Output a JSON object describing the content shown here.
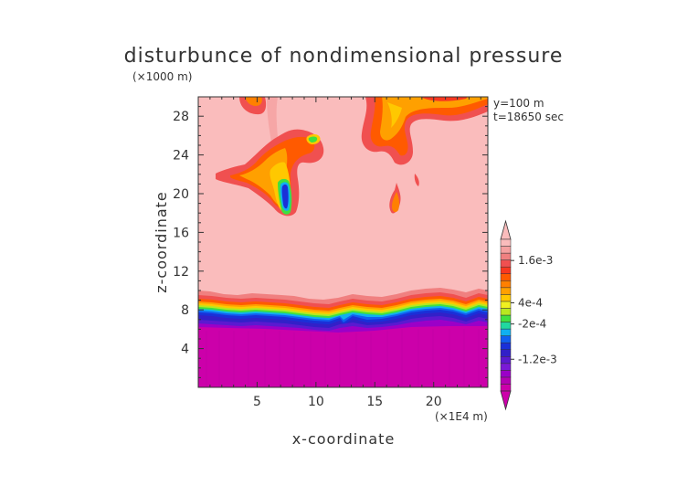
{
  "chart_data": {
    "type": "heatmap",
    "title": "disturbunce of nondimensional pressure",
    "xlabel": "x-coordinate",
    "ylabel": "z-coordinate",
    "x_unit": "(×1E4 m)",
    "y_unit": "(×1000 m)",
    "annotations": [
      "y=100 m",
      "t=18650 sec"
    ],
    "xlim": [
      0,
      24.6
    ],
    "ylim": [
      0,
      30
    ],
    "x_ticks": [
      5,
      10,
      15,
      20
    ],
    "y_ticks": [
      4,
      8,
      12,
      16,
      20,
      24,
      28
    ],
    "colorbar": {
      "labels": [
        {
          "text": "1.6e-3",
          "value": 0.0016
        },
        {
          "text": "4e-4",
          "value": 0.0004
        },
        {
          "text": "-2e-4",
          "value": -0.0002
        },
        {
          "text": "-1.2e-3",
          "value": -0.0012
        }
      ],
      "colors": [
        "#cc00aa",
        "#b400b4",
        "#9b00c8",
        "#7a1ad6",
        "#5a1ad0",
        "#3220c8",
        "#1a30d8",
        "#1060f0",
        "#10b0f0",
        "#20d8a0",
        "#40e040",
        "#b8e820",
        "#f0f020",
        "#ffc800",
        "#ffa000",
        "#ff8000",
        "#ff5a00",
        "#f83820",
        "#f05050",
        "#f08080",
        "#f5a0a0",
        "#fabcbc"
      ],
      "extend": "both"
    },
    "field": {
      "background": {
        "value_range": ">=0",
        "color": "#fabcbc"
      },
      "regions": [
        {
          "label": "lower negative layer",
          "z_range": [
            0,
            8
          ],
          "value": -0.0015
        },
        {
          "label": "transition band",
          "z_range": [
            7.5,
            9.7
          ],
          "value_range": [
            -0.0009,
            0.0008
          ]
        },
        {
          "label": "positive anomaly near x=7.5",
          "x_range": [
            2,
            9
          ],
          "z_range": [
            17.5,
            24.5
          ],
          "value_range": [
            0.0004,
            0.0016
          ]
        },
        {
          "label": "positive anomaly near x=17",
          "x_range": [
            16.5,
            17.8
          ],
          "z_range": [
            17.8,
            21
          ],
          "value": 0.0008
        },
        {
          "label": "positive anomaly top right",
          "x_range": [
            14,
            24.6
          ],
          "z_range": [
            25,
            30
          ],
          "value_range": [
            0.0006,
            0.0016
          ]
        },
        {
          "label": "positive anomaly top left",
          "x_range": [
            3.5,
            6.5
          ],
          "z_range": [
            28,
            30
          ],
          "value": 0.0008
        }
      ]
    }
  }
}
